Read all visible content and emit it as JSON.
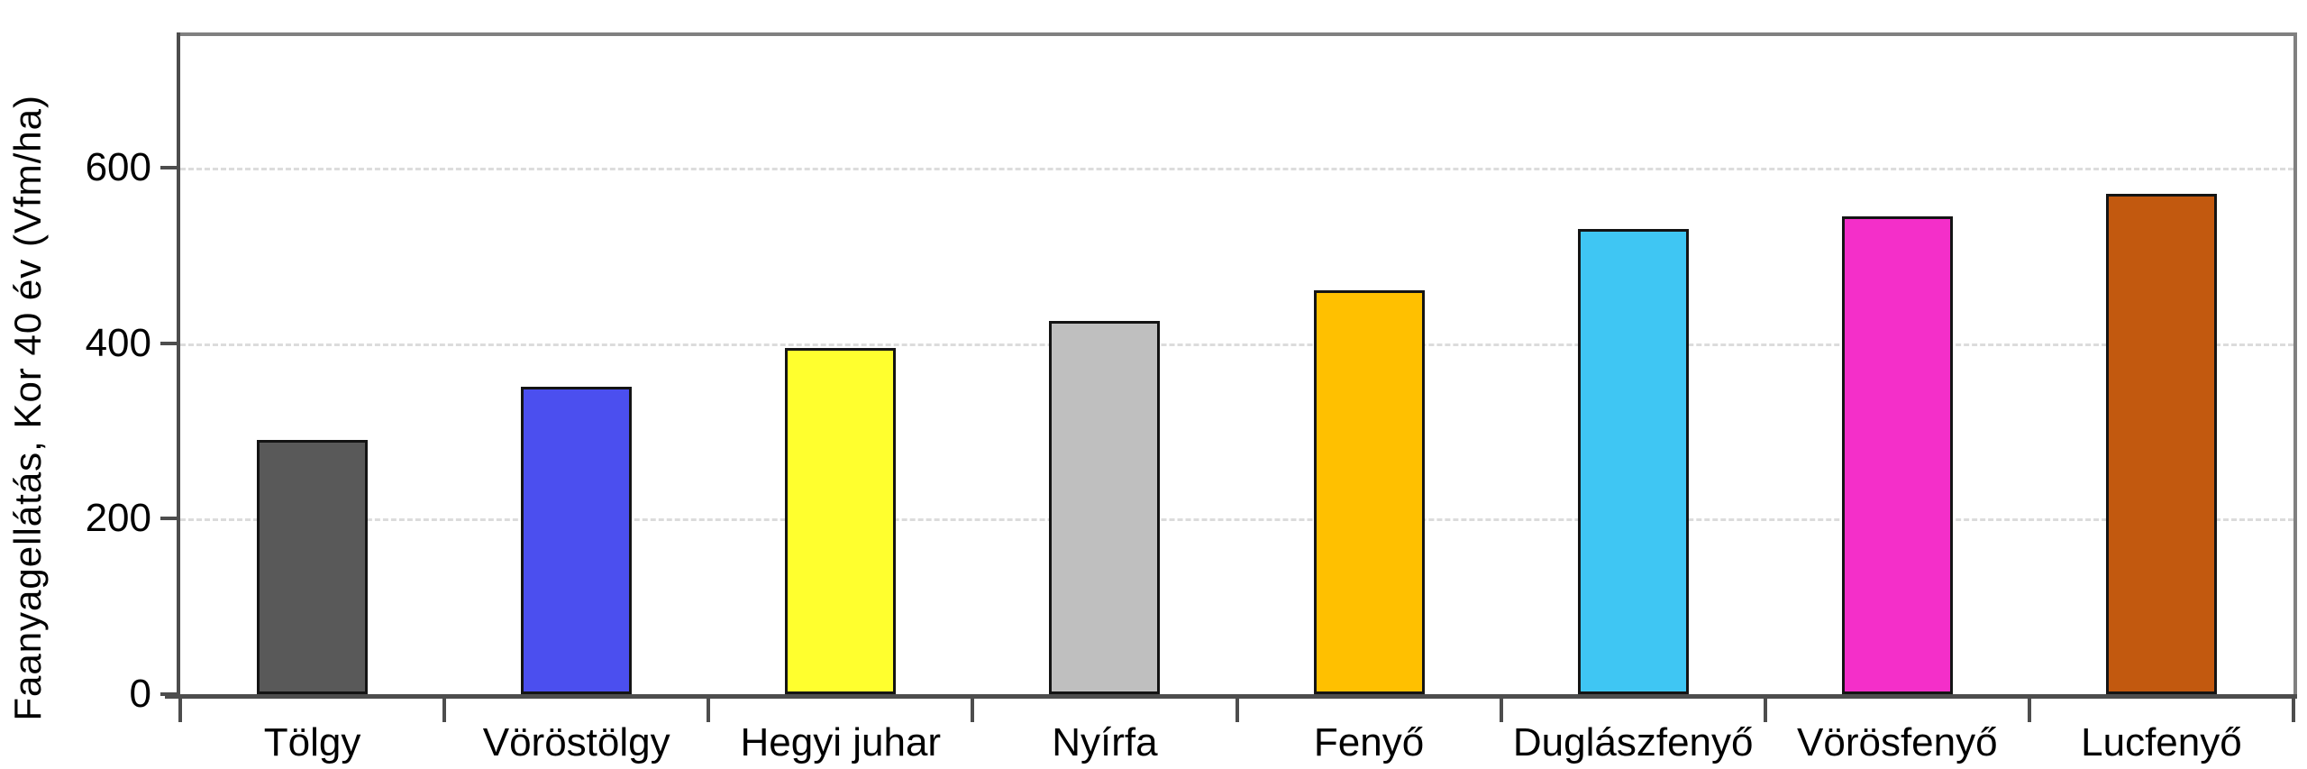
{
  "chart_data": {
    "type": "bar",
    "title": "",
    "categories": [
      "Tölgy",
      "Vöröstölgy",
      "Hegyi juhar",
      "Nyírfa",
      "Fenyő",
      "Duglászfenyő",
      "Vörösfenyő",
      "Lucfenyő"
    ],
    "values": [
      290,
      350,
      395,
      425,
      460,
      530,
      545,
      570
    ],
    "bar_colors": [
      "#595959",
      "#4B4FEF",
      "#FFFF2E",
      "#BFBFBF",
      "#FFC000",
      "#3FC6F3",
      "#F42FC9",
      "#C2590F"
    ],
    "xlabel": "",
    "ylabel": "Faanyagellátás, Kor 40 év (Vfm/ha)",
    "ylim": [
      0,
      750
    ],
    "yticks": [
      0,
      200,
      400,
      600
    ],
    "grid": "horizontal-dashed",
    "legend_position": "none"
  },
  "style": {
    "background": "#ffffff",
    "axis_color": "#4d4d4d",
    "frame_color": "#808080",
    "gridline_color": "#dcdcdc",
    "bar_border_color": "#141414",
    "text_color": "#000000"
  }
}
